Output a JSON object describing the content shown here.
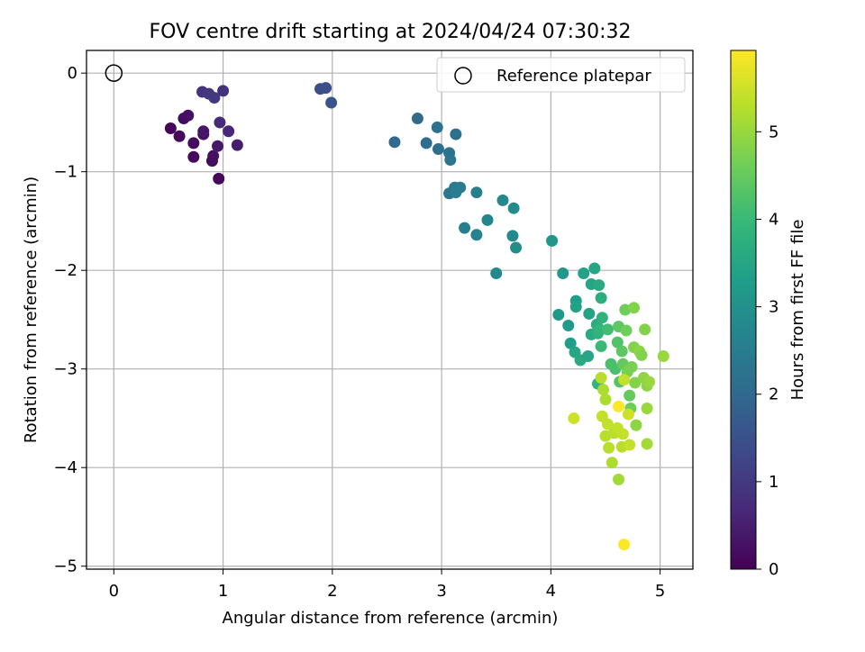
{
  "chart_data": {
    "type": "scatter",
    "title": "FOV centre drift starting at 2024/04/24 07:30:32",
    "xlabel": "Angular distance from reference (arcmin)",
    "ylabel": "Rotation from reference (arcmin)",
    "xlim": [
      -0.25,
      5.3
    ],
    "ylim": [
      -5.03,
      0.23
    ],
    "xticks": [
      "0",
      "1",
      "2",
      "3",
      "4",
      "5"
    ],
    "yticks": [
      "0",
      "−1",
      "−2",
      "−3",
      "−4",
      "−5"
    ],
    "grid": true,
    "legend": {
      "position": "top-right",
      "entries": [
        "Reference platepar"
      ]
    },
    "reference_point": {
      "x": 0,
      "y": 0
    },
    "colorbar": {
      "label": "Hours from first FF file",
      "colormap": "viridis",
      "range": [
        0,
        5.93
      ],
      "ticks": [
        "0",
        "1",
        "2",
        "3",
        "4",
        "5"
      ]
    },
    "colors": {
      "viridis": [
        "#440154",
        "#482878",
        "#3e4989",
        "#31688e",
        "#26828e",
        "#1f9e89",
        "#35b779",
        "#6ece58",
        "#b5de2b",
        "#fde725"
      ]
    },
    "points": [
      {
        "x": 0.52,
        "y": -0.56,
        "h": 0.1
      },
      {
        "x": 0.6,
        "y": -0.64,
        "h": 0.15
      },
      {
        "x": 0.64,
        "y": -0.46,
        "h": 0.2
      },
      {
        "x": 0.68,
        "y": -0.43,
        "h": 0.25
      },
      {
        "x": 0.73,
        "y": -0.71,
        "h": 0.2
      },
      {
        "x": 0.73,
        "y": -0.85,
        "h": 0.15
      },
      {
        "x": 0.82,
        "y": -0.62,
        "h": 0.3
      },
      {
        "x": 0.82,
        "y": -0.59,
        "h": 0.35
      },
      {
        "x": 0.9,
        "y": -0.89,
        "h": 0.2
      },
      {
        "x": 0.91,
        "y": -0.84,
        "h": 0.25
      },
      {
        "x": 0.95,
        "y": -0.74,
        "h": 0.4
      },
      {
        "x": 0.96,
        "y": -1.07,
        "h": 0.1
      },
      {
        "x": 0.97,
        "y": -0.5,
        "h": 0.7
      },
      {
        "x": 1.05,
        "y": -0.59,
        "h": 0.65
      },
      {
        "x": 1.13,
        "y": -0.73,
        "h": 0.45
      },
      {
        "x": 0.81,
        "y": -0.19,
        "h": 0.9
      },
      {
        "x": 0.87,
        "y": -0.21,
        "h": 0.95
      },
      {
        "x": 0.92,
        "y": -0.25,
        "h": 1.0
      },
      {
        "x": 1.0,
        "y": -0.18,
        "h": 0.85
      },
      {
        "x": 1.89,
        "y": -0.16,
        "h": 1.4
      },
      {
        "x": 1.94,
        "y": -0.15,
        "h": 1.45
      },
      {
        "x": 1.99,
        "y": -0.3,
        "h": 1.55
      },
      {
        "x": 2.57,
        "y": -0.7,
        "h": 2.0
      },
      {
        "x": 2.78,
        "y": -0.46,
        "h": 2.05
      },
      {
        "x": 2.86,
        "y": -0.71,
        "h": 2.1
      },
      {
        "x": 2.96,
        "y": -0.55,
        "h": 2.2
      },
      {
        "x": 2.97,
        "y": -0.77,
        "h": 2.15
      },
      {
        "x": 3.07,
        "y": -0.81,
        "h": 2.25
      },
      {
        "x": 3.08,
        "y": -0.88,
        "h": 2.3
      },
      {
        "x": 3.13,
        "y": -0.62,
        "h": 2.15
      },
      {
        "x": 3.07,
        "y": -1.22,
        "h": 2.35
      },
      {
        "x": 3.12,
        "y": -1.16,
        "h": 2.4
      },
      {
        "x": 3.17,
        "y": -1.16,
        "h": 2.45
      },
      {
        "x": 3.13,
        "y": -1.21,
        "h": 2.5
      },
      {
        "x": 3.21,
        "y": -1.57,
        "h": 2.55
      },
      {
        "x": 3.32,
        "y": -1.21,
        "h": 2.55
      },
      {
        "x": 3.32,
        "y": -1.64,
        "h": 2.6
      },
      {
        "x": 3.42,
        "y": -1.49,
        "h": 2.7
      },
      {
        "x": 3.5,
        "y": -2.03,
        "h": 2.8
      },
      {
        "x": 3.56,
        "y": -1.29,
        "h": 2.8
      },
      {
        "x": 3.65,
        "y": -1.65,
        "h": 2.85
      },
      {
        "x": 3.66,
        "y": -1.37,
        "h": 2.85
      },
      {
        "x": 3.68,
        "y": -1.77,
        "h": 2.9
      },
      {
        "x": 4.01,
        "y": -1.7,
        "h": 3.1
      },
      {
        "x": 4.07,
        "y": -2.45,
        "h": 3.15
      },
      {
        "x": 4.11,
        "y": -2.03,
        "h": 3.15
      },
      {
        "x": 4.16,
        "y": -2.56,
        "h": 3.2
      },
      {
        "x": 4.18,
        "y": -2.74,
        "h": 3.3
      },
      {
        "x": 4.23,
        "y": -2.31,
        "h": 3.3
      },
      {
        "x": 4.23,
        "y": -2.37,
        "h": 3.4
      },
      {
        "x": 4.22,
        "y": -2.83,
        "h": 3.5
      },
      {
        "x": 4.27,
        "y": -2.91,
        "h": 3.6
      },
      {
        "x": 4.3,
        "y": -2.03,
        "h": 3.4
      },
      {
        "x": 4.34,
        "y": -2.87,
        "h": 3.5
      },
      {
        "x": 4.35,
        "y": -2.44,
        "h": 3.4
      },
      {
        "x": 4.37,
        "y": -2.14,
        "h": 3.5
      },
      {
        "x": 4.37,
        "y": -2.65,
        "h": 3.6
      },
      {
        "x": 4.4,
        "y": -1.98,
        "h": 3.5
      },
      {
        "x": 4.42,
        "y": -2.55,
        "h": 3.7
      },
      {
        "x": 4.43,
        "y": -2.64,
        "h": 3.8
      },
      {
        "x": 4.44,
        "y": -2.15,
        "h": 3.6
      },
      {
        "x": 4.46,
        "y": -2.28,
        "h": 3.7
      },
      {
        "x": 4.47,
        "y": -2.48,
        "h": 3.8
      },
      {
        "x": 4.45,
        "y": -2.6,
        "h": 3.9
      },
      {
        "x": 4.46,
        "y": -2.77,
        "h": 4.0
      },
      {
        "x": 4.43,
        "y": -3.15,
        "h": 3.9
      },
      {
        "x": 4.52,
        "y": -2.6,
        "h": 4.1
      },
      {
        "x": 4.55,
        "y": -2.95,
        "h": 4.2
      },
      {
        "x": 4.59,
        "y": -3.0,
        "h": 4.2
      },
      {
        "x": 4.61,
        "y": -2.73,
        "h": 4.3
      },
      {
        "x": 4.62,
        "y": -2.57,
        "h": 4.4
      },
      {
        "x": 4.63,
        "y": -3.13,
        "h": 4.3
      },
      {
        "x": 4.65,
        "y": -2.82,
        "h": 4.4
      },
      {
        "x": 4.66,
        "y": -2.95,
        "h": 4.5
      },
      {
        "x": 4.68,
        "y": -2.4,
        "h": 4.6
      },
      {
        "x": 4.69,
        "y": -2.61,
        "h": 4.6
      },
      {
        "x": 4.7,
        "y": -3.03,
        "h": 4.7
      },
      {
        "x": 4.72,
        "y": -3.27,
        "h": 4.5
      },
      {
        "x": 4.73,
        "y": -3.4,
        "h": 4.6
      },
      {
        "x": 4.74,
        "y": -2.98,
        "h": 4.7
      },
      {
        "x": 4.76,
        "y": -2.38,
        "h": 4.8
      },
      {
        "x": 4.76,
        "y": -2.78,
        "h": 4.8
      },
      {
        "x": 4.77,
        "y": -3.14,
        "h": 4.8
      },
      {
        "x": 4.78,
        "y": -3.57,
        "h": 4.9
      },
      {
        "x": 4.81,
        "y": -2.82,
        "h": 4.9
      },
      {
        "x": 4.83,
        "y": -2.86,
        "h": 4.8
      },
      {
        "x": 4.85,
        "y": -3.09,
        "h": 4.9
      },
      {
        "x": 4.86,
        "y": -2.6,
        "h": 4.8
      },
      {
        "x": 4.88,
        "y": -3.17,
        "h": 4.9
      },
      {
        "x": 4.88,
        "y": -3.4,
        "h": 5.0
      },
      {
        "x": 4.88,
        "y": -3.76,
        "h": 5.1
      },
      {
        "x": 4.9,
        "y": -3.13,
        "h": 5.0
      },
      {
        "x": 5.03,
        "y": -2.87,
        "h": 5.0
      },
      {
        "x": 4.46,
        "y": -3.09,
        "h": 5.3
      },
      {
        "x": 4.48,
        "y": -3.21,
        "h": 5.2
      },
      {
        "x": 4.5,
        "y": -3.31,
        "h": 5.2
      },
      {
        "x": 4.47,
        "y": -3.48,
        "h": 5.4
      },
      {
        "x": 4.5,
        "y": -3.68,
        "h": 5.3
      },
      {
        "x": 4.52,
        "y": -3.56,
        "h": 5.4
      },
      {
        "x": 4.53,
        "y": -3.8,
        "h": 5.3
      },
      {
        "x": 4.56,
        "y": -3.95,
        "h": 5.2
      },
      {
        "x": 4.58,
        "y": -3.65,
        "h": 5.3
      },
      {
        "x": 4.61,
        "y": -3.6,
        "h": 5.4
      },
      {
        "x": 4.62,
        "y": -4.12,
        "h": 5.1
      },
      {
        "x": 4.65,
        "y": -3.79,
        "h": 5.3
      },
      {
        "x": 4.66,
        "y": -3.66,
        "h": 5.4
      },
      {
        "x": 4.67,
        "y": -3.11,
        "h": 5.4
      },
      {
        "x": 4.71,
        "y": -3.46,
        "h": 5.5
      },
      {
        "x": 4.72,
        "y": -3.77,
        "h": 5.4
      },
      {
        "x": 4.62,
        "y": -3.38,
        "h": 5.9
      },
      {
        "x": 4.21,
        "y": -3.5,
        "h": 5.5
      },
      {
        "x": 4.67,
        "y": -4.78,
        "h": 5.93
      }
    ]
  }
}
